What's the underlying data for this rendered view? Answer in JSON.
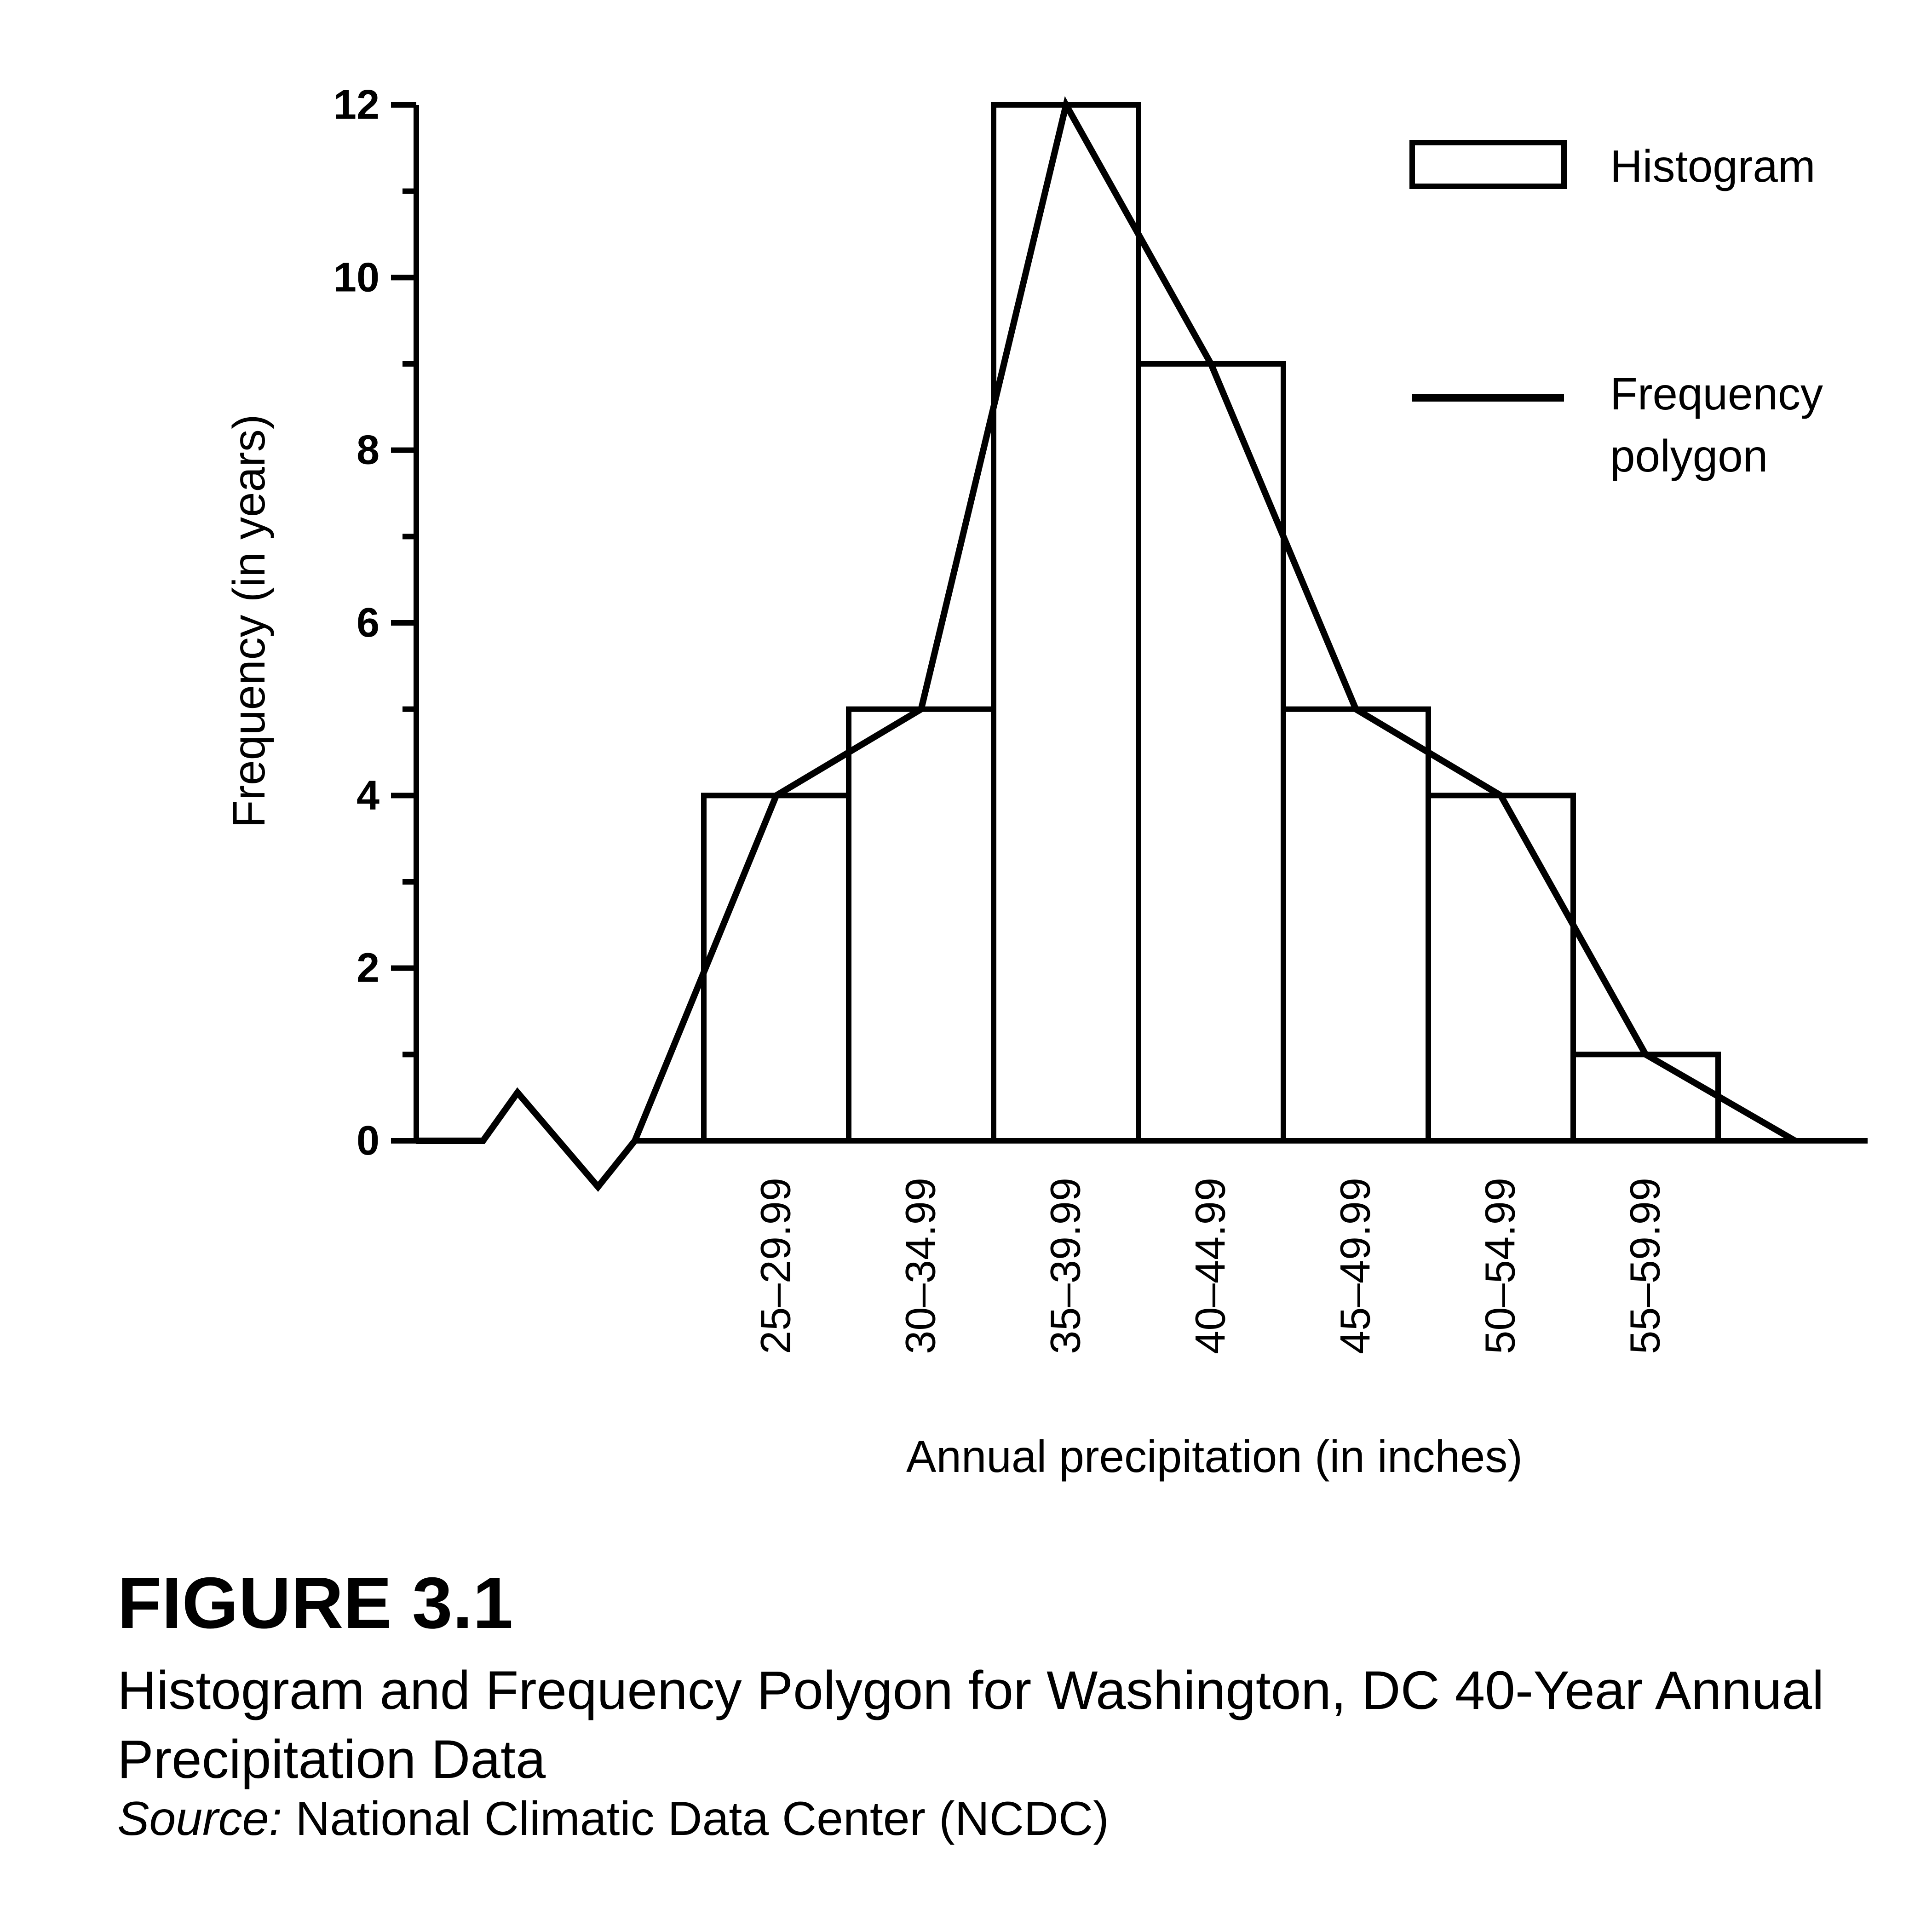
{
  "chart_data": {
    "type": "bar",
    "categories": [
      "25–29.99",
      "30–34.99",
      "35–39.99",
      "40–44.99",
      "45–49.99",
      "50–54.99",
      "55–59.99"
    ],
    "series": [
      {
        "name": "Histogram",
        "kind": "bar",
        "values": [
          4,
          5,
          12,
          9,
          5,
          4,
          1
        ]
      },
      {
        "name": "Frequency polygon",
        "kind": "line",
        "values": [
          4,
          5,
          12,
          9,
          5,
          4,
          1
        ]
      }
    ],
    "yticks": [
      0,
      2,
      4,
      6,
      8,
      10,
      12
    ],
    "ylim": [
      0,
      12
    ],
    "xlabel": "Annual precipitation (in inches)",
    "ylabel": "Frequency (in years)",
    "legend": {
      "placement": "top-right",
      "histogram_label": "Histogram",
      "polygon_label_line1": "Frequency",
      "polygon_label_line2": "polygon"
    },
    "axis_break": true,
    "grid": false
  },
  "figure": {
    "label": "FIGURE 3.1",
    "caption": "Histogram and Frequency Polygon for Washington, DC 40-Year Annual Precipitation Data",
    "source_label": "Source:",
    "source_text": " National Climatic Data Center (NCDC)"
  }
}
